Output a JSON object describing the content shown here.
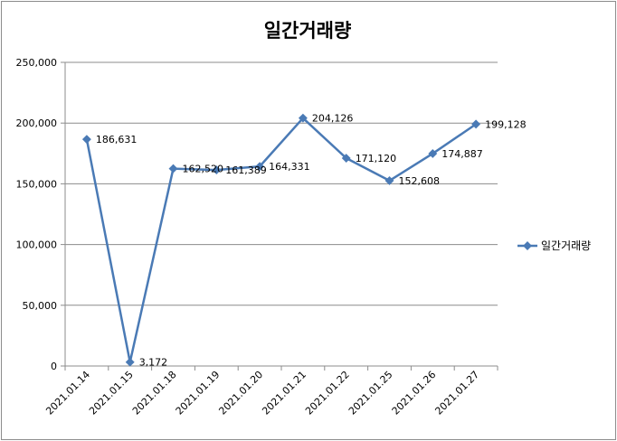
{
  "chart_data": {
    "type": "line",
    "title": "일간거래량",
    "categories": [
      "2021.01.14",
      "2021.01.15",
      "2021.01.18",
      "2021.01.19",
      "2021.01.20",
      "2021.01.21",
      "2021.01.22",
      "2021.01.25",
      "2021.01.26",
      "2021.01.27"
    ],
    "series": [
      {
        "name": "일간거래량",
        "values": [
          186631,
          3172,
          162520,
          161389,
          164331,
          204126,
          171120,
          152608,
          174887,
          199128
        ],
        "labels": [
          "186,631",
          "3,172",
          "162,520",
          "161,389",
          "164,331",
          "204,126",
          "171,120",
          "152,608",
          "174,887",
          "199,128"
        ]
      }
    ],
    "ylim": [
      0,
      250000
    ],
    "yticks": [
      "0",
      "50,000",
      "100,000",
      "150,000",
      "200,000",
      "250,000"
    ],
    "grid": true,
    "legend": "right",
    "colors": {
      "series": "#4a7ab5",
      "grid": "#8c8c8c"
    }
  }
}
